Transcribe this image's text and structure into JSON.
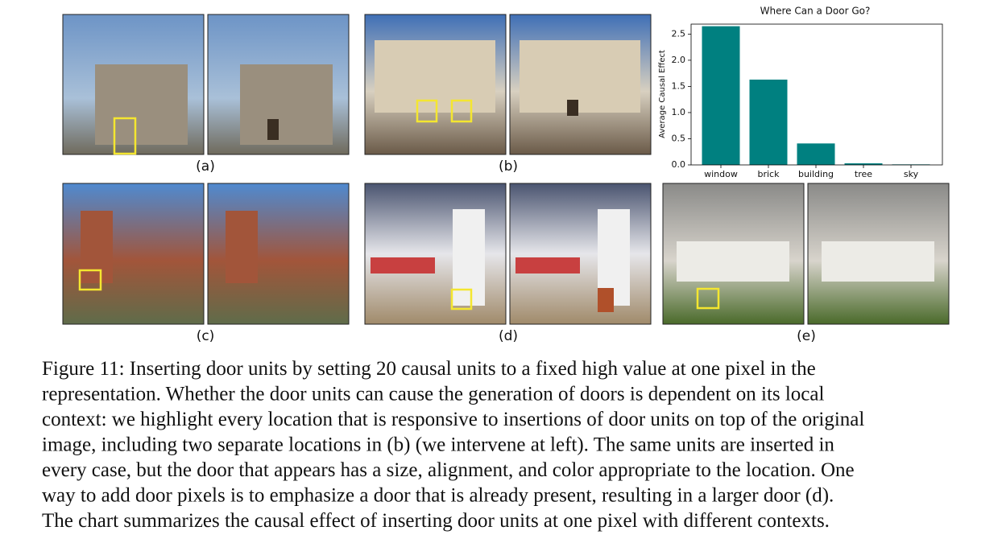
{
  "panels": [
    {
      "label": "(a)"
    },
    {
      "label": "(b)"
    },
    {
      "label": "(c)"
    },
    {
      "label": "(d)"
    },
    {
      "label": "(e)"
    }
  ],
  "chart_data": {
    "type": "bar",
    "title": "Where Can a Door Go?",
    "y_label": "Average Causal Effect",
    "categories": [
      "window",
      "brick",
      "building",
      "tree",
      "sky"
    ],
    "values": [
      2.65,
      1.63,
      0.41,
      0.03,
      0.01
    ],
    "color": "#008080",
    "ylim": [
      0,
      2.69
    ],
    "yticks": [
      {
        "value": 0,
        "label": "0.0"
      },
      {
        "value": 0.5,
        "label": "0.5"
      },
      {
        "value": 1,
        "label": "1.0"
      },
      {
        "value": 1.5,
        "label": "1.5"
      },
      {
        "value": 2,
        "label": "2.0"
      },
      {
        "value": 2.5,
        "label": "2.5"
      }
    ]
  },
  "caption": [
    "Figure 11: Inserting door units by setting 20 causal units to a fixed high value at one pixel in the",
    "representation. Whether the door units can cause the generation of doors is dependent on its local",
    "context: we highlight every location that is responsive to insertions of door units on top of the original",
    "image, including two separate locations in (b) (we intervene at left). The same units are inserted in",
    "every case, but the door that appears has a size, alignment, and color appropriate to the location. One",
    "way to add door pixels is to emphasize a door that is already present, resulting in a larger door (d).",
    "The chart summarizes the causal effect of inserting door units at one pixel with different contexts."
  ]
}
